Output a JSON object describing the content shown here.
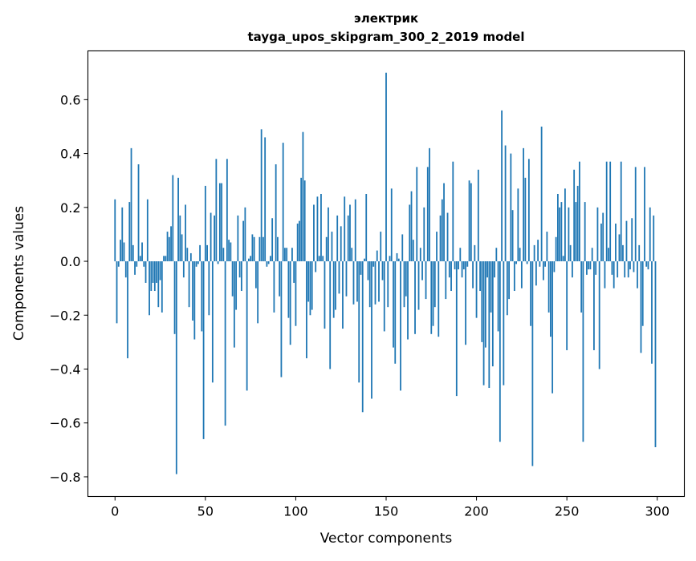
{
  "chart_data": {
    "type": "bar",
    "title": [
      "электрик",
      "tayga_upos_skipgram_300_2_2019 model"
    ],
    "xlabel": "Vector components",
    "ylabel": "Components values",
    "xlim": [
      -15,
      315
    ],
    "ylim": [
      -0.873,
      0.781
    ],
    "xticks": [
      0,
      50,
      100,
      150,
      200,
      250,
      300
    ],
    "xtick_labels": [
      "0",
      "50",
      "100",
      "150",
      "200",
      "250",
      "300"
    ],
    "yticks": [
      0.6,
      0.4,
      0.2,
      0.0,
      -0.2,
      -0.4,
      -0.6,
      -0.8
    ],
    "ytick_labels": [
      "0.6",
      "0.4",
      "0.2",
      "0.0",
      "−0.2",
      "−0.4",
      "−0.6",
      "−0.8"
    ],
    "grid": false,
    "bar_color": "#1f77b4",
    "values": [
      0.23,
      -0.23,
      -0.02,
      0.08,
      0.2,
      0.07,
      -0.06,
      -0.36,
      0.22,
      0.42,
      0.06,
      -0.05,
      -0.02,
      0.36,
      0.02,
      0.07,
      -0.02,
      -0.08,
      0.23,
      -0.2,
      -0.11,
      -0.08,
      -0.11,
      -0.08,
      -0.17,
      -0.07,
      -0.19,
      0.02,
      0.02,
      0.11,
      0.09,
      0.13,
      0.32,
      -0.27,
      -0.79,
      0.31,
      0.17,
      0.1,
      -0.06,
      0.21,
      0.05,
      -0.17,
      0.03,
      -0.22,
      -0.29,
      -0.02,
      -0.01,
      0.06,
      -0.26,
      -0.66,
      0.28,
      0.06,
      -0.2,
      0.18,
      -0.45,
      0.17,
      0.38,
      -0.01,
      0.29,
      0.29,
      0.05,
      -0.61,
      0.38,
      0.08,
      0.07,
      -0.13,
      -0.32,
      -0.18,
      0.17,
      -0.06,
      -0.11,
      0.15,
      0.2,
      -0.48,
      0.01,
      0.02,
      0.1,
      0.09,
      -0.1,
      -0.23,
      0.09,
      0.49,
      0.09,
      0.46,
      -0.02,
      -0.01,
      0.02,
      0.16,
      -0.19,
      0.36,
      0.09,
      -0.13,
      -0.43,
      0.44,
      0.05,
      0.05,
      -0.21,
      -0.31,
      0.05,
      -0.08,
      -0.24,
      0.14,
      0.15,
      0.31,
      0.48,
      0.3,
      -0.36,
      -0.15,
      -0.2,
      -0.18,
      0.21,
      -0.04,
      0.24,
      0.02,
      0.25,
      0.02,
      -0.25,
      0.09,
      0.2,
      -0.4,
      0.11,
      -0.21,
      -0.18,
      0.17,
      -0.12,
      0.13,
      -0.25,
      0.24,
      -0.13,
      0.17,
      0.21,
      0.05,
      -0.16,
      0.23,
      -0.15,
      -0.45,
      -0.05,
      -0.56,
      0.01,
      0.25,
      -0.07,
      -0.17,
      -0.51,
      -0.02,
      -0.16,
      0.04,
      -0.15,
      0.11,
      -0.07,
      -0.26,
      0.7,
      -0.17,
      0.02,
      0.27,
      -0.32,
      -0.38,
      0.03,
      0.01,
      -0.48,
      0.1,
      -0.17,
      -0.13,
      -0.29,
      0.21,
      0.26,
      0.08,
      -0.27,
      0.35,
      -0.18,
      0.05,
      -0.07,
      0.2,
      -0.14,
      0.35,
      0.42,
      -0.27,
      -0.24,
      -0.17,
      0.11,
      -0.28,
      0.17,
      0.23,
      0.29,
      -0.14,
      0.18,
      -0.06,
      -0.11,
      0.37,
      -0.03,
      -0.5,
      -0.03,
      0.05,
      -0.06,
      -0.03,
      -0.31,
      -0.02,
      0.3,
      0.29,
      -0.1,
      0.06,
      -0.21,
      0.34,
      -0.11,
      -0.3,
      -0.46,
      -0.32,
      -0.06,
      -0.47,
      -0.19,
      -0.39,
      -0.06,
      0.05,
      -0.26,
      -0.67,
      0.56,
      -0.46,
      0.43,
      -0.2,
      -0.14,
      0.4,
      0.19,
      -0.11,
      -0.01,
      0.27,
      0.05,
      -0.1,
      0.42,
      0.31,
      -0.01,
      0.38,
      -0.24,
      -0.76,
      0.06,
      -0.09,
      0.08,
      -0.02,
      0.5,
      -0.07,
      -0.02,
      0.11,
      -0.19,
      -0.28,
      -0.49,
      -0.04,
      0.09,
      0.25,
      0.2,
      0.22,
      0.02,
      0.27,
      -0.33,
      0.2,
      0.06,
      -0.06,
      0.34,
      0.22,
      0.28,
      0.37,
      -0.19,
      -0.67,
      0.22,
      -0.05,
      -0.03,
      -0.03,
      0.05,
      -0.33,
      -0.05,
      0.2,
      -0.4,
      0.14,
      0.18,
      -0.1,
      0.37,
      0.05,
      0.37,
      -0.05,
      -0.1,
      0.14,
      -0.06,
      0.1,
      0.37,
      0.06,
      -0.06,
      0.15,
      -0.06,
      -0.03,
      0.16,
      -0.04,
      0.35,
      -0.1,
      0.06,
      -0.34,
      -0.24,
      0.35,
      -0.02,
      -0.03,
      0.2,
      -0.38,
      0.17,
      -0.69
    ]
  }
}
